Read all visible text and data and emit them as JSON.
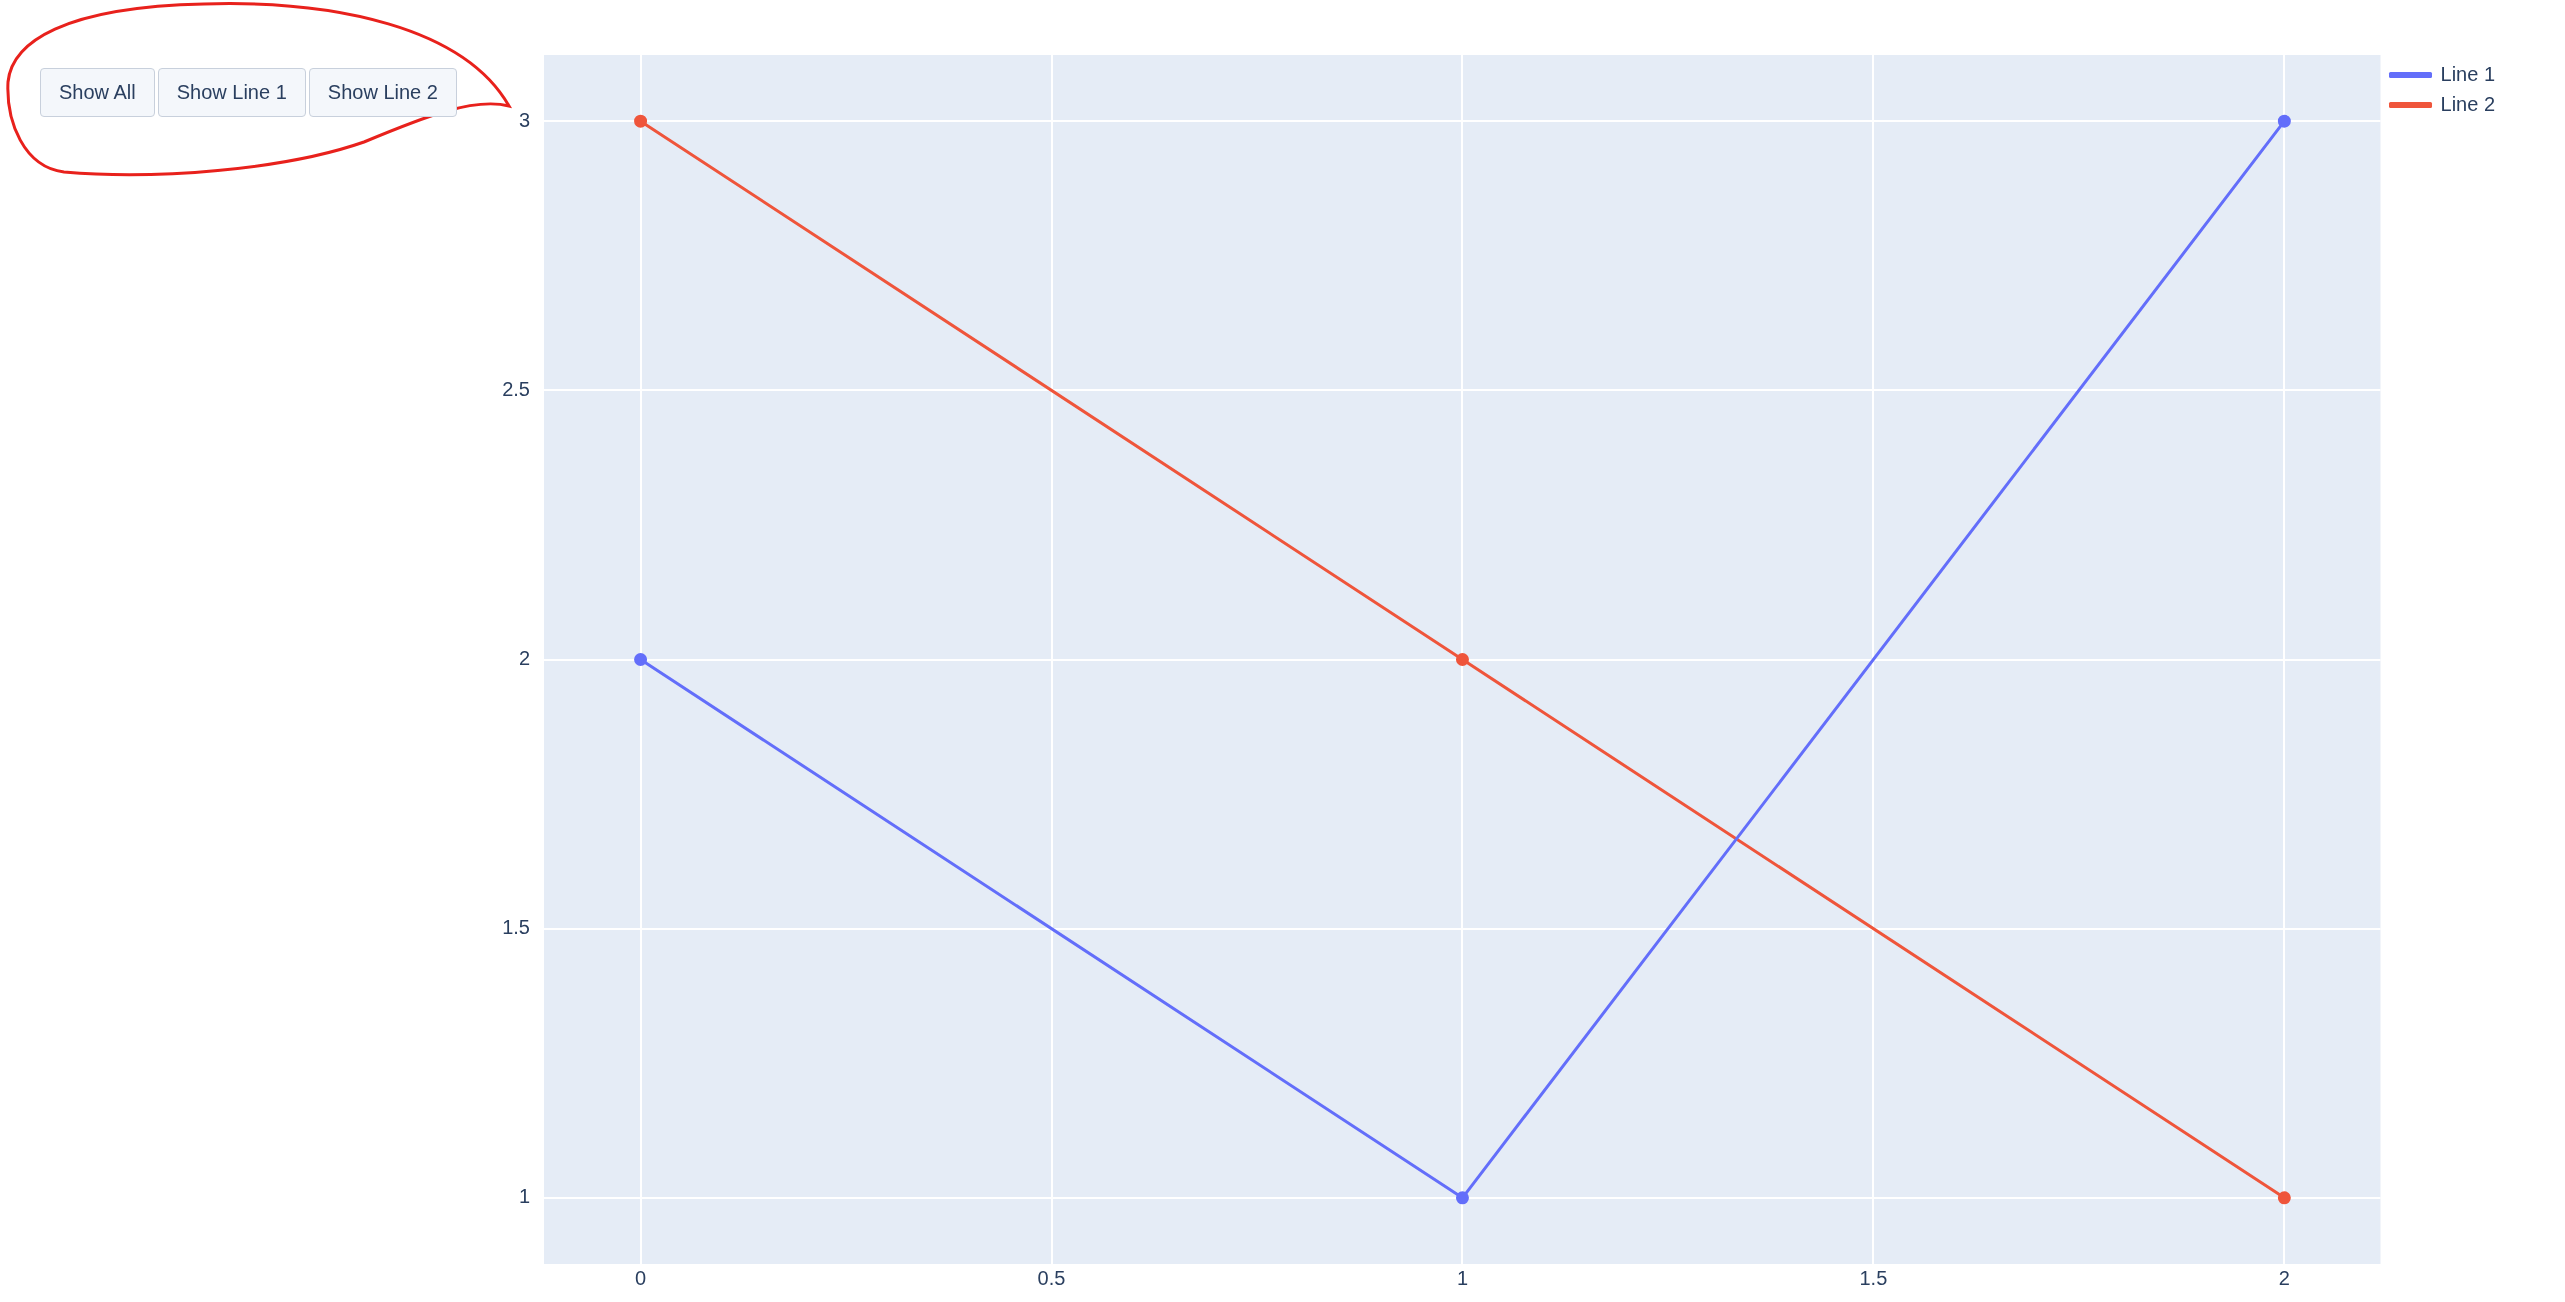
{
  "chart_data": {
    "type": "line",
    "x": [
      0,
      1,
      2
    ],
    "series": [
      {
        "name": "Line 1",
        "color": "#636efa",
        "values": [
          2,
          1,
          3
        ]
      },
      {
        "name": "Line 2",
        "color": "#ef553b",
        "values": [
          3,
          2,
          1
        ]
      }
    ],
    "xlim": [
      -0.1175,
      2.117
    ],
    "ylim": [
      0.877,
      3.123
    ],
    "xticks": [
      0,
      0.5,
      1,
      1.5,
      2
    ],
    "yticks": [
      1,
      1.5,
      2,
      2.5,
      3
    ],
    "grid": true,
    "legend": "top right",
    "marker": "circle",
    "line_style": "solid",
    "annotations": [
      "Show All",
      "Show Line 1",
      "Show Line 2"
    ]
  }
}
